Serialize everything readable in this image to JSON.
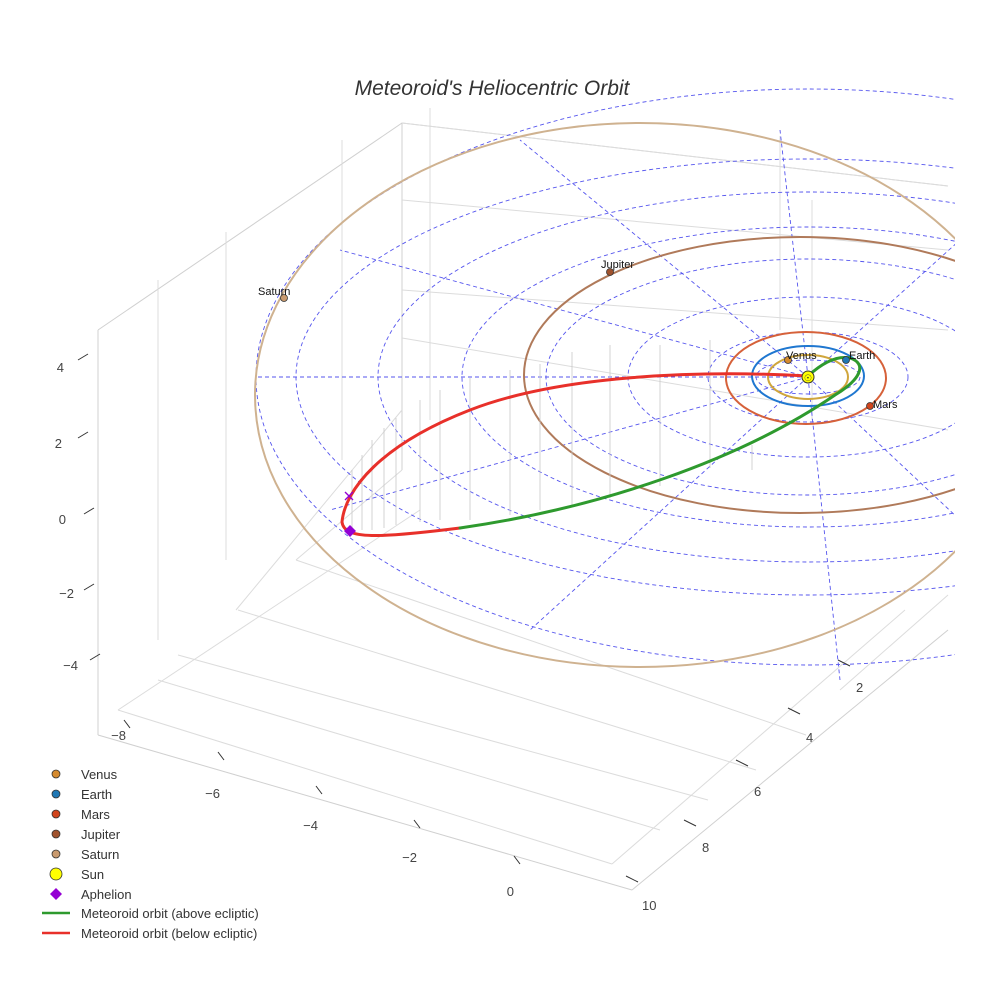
{
  "chart_data": {
    "type": "scatter3d",
    "title": "Meteoroid's Heliocentric Orbit",
    "axes": {
      "x": {
        "ticks": [
          "0",
          "−2",
          "−4",
          "−6",
          "−8"
        ]
      },
      "y": {
        "ticks": [
          "2",
          "4",
          "6",
          "8",
          "10"
        ]
      },
      "z": {
        "ticks": [
          "4",
          "2",
          "0",
          "−2",
          "−4"
        ]
      }
    },
    "planets": [
      {
        "name": "Venus",
        "color": "#d58a2e",
        "orbit_color": "#d0a63c"
      },
      {
        "name": "Earth",
        "color": "#1f77b4",
        "orbit_color": "#1f77d0"
      },
      {
        "name": "Mars",
        "color": "#d1451d",
        "orbit_color": "#d6613a"
      },
      {
        "name": "Jupiter",
        "color": "#a0522d",
        "orbit_color": "#b07a5a"
      },
      {
        "name": "Saturn",
        "color": "#c99a6e",
        "orbit_color": "#cfb290"
      }
    ],
    "sun": {
      "name": "Sun",
      "color": "#ffff00",
      "label": "☉"
    },
    "aphelion": {
      "name": "Aphelion",
      "color": "#9400d3"
    },
    "meteoroid": {
      "above_name": "Meteoroid orbit (above ecliptic)",
      "above_color": "#2e9a2e",
      "below_name": "Meteoroid orbit (below ecliptic)",
      "below_color": "#e8302a"
    },
    "legend": [
      {
        "label": "Venus",
        "symbol": "circle",
        "color": "#d58a2e"
      },
      {
        "label": "Earth",
        "symbol": "circle",
        "color": "#1f77b4"
      },
      {
        "label": "Mars",
        "symbol": "circle",
        "color": "#d1451d"
      },
      {
        "label": "Jupiter",
        "symbol": "circle",
        "color": "#a0522d"
      },
      {
        "label": "Saturn",
        "symbol": "circle",
        "color": "#c99a6e"
      },
      {
        "label": "Sun",
        "symbol": "circle-lg",
        "color": "#ffff00"
      },
      {
        "label": "Aphelion",
        "symbol": "diamond",
        "color": "#9400d3"
      },
      {
        "label": "Meteoroid orbit (above ecliptic)",
        "symbol": "line",
        "color": "#2e9a2e"
      },
      {
        "label": "Meteoroid orbit (below ecliptic)",
        "symbol": "line",
        "color": "#e8302a"
      }
    ],
    "legend_position": "bottom-left",
    "grid_color": "#5555ee"
  }
}
